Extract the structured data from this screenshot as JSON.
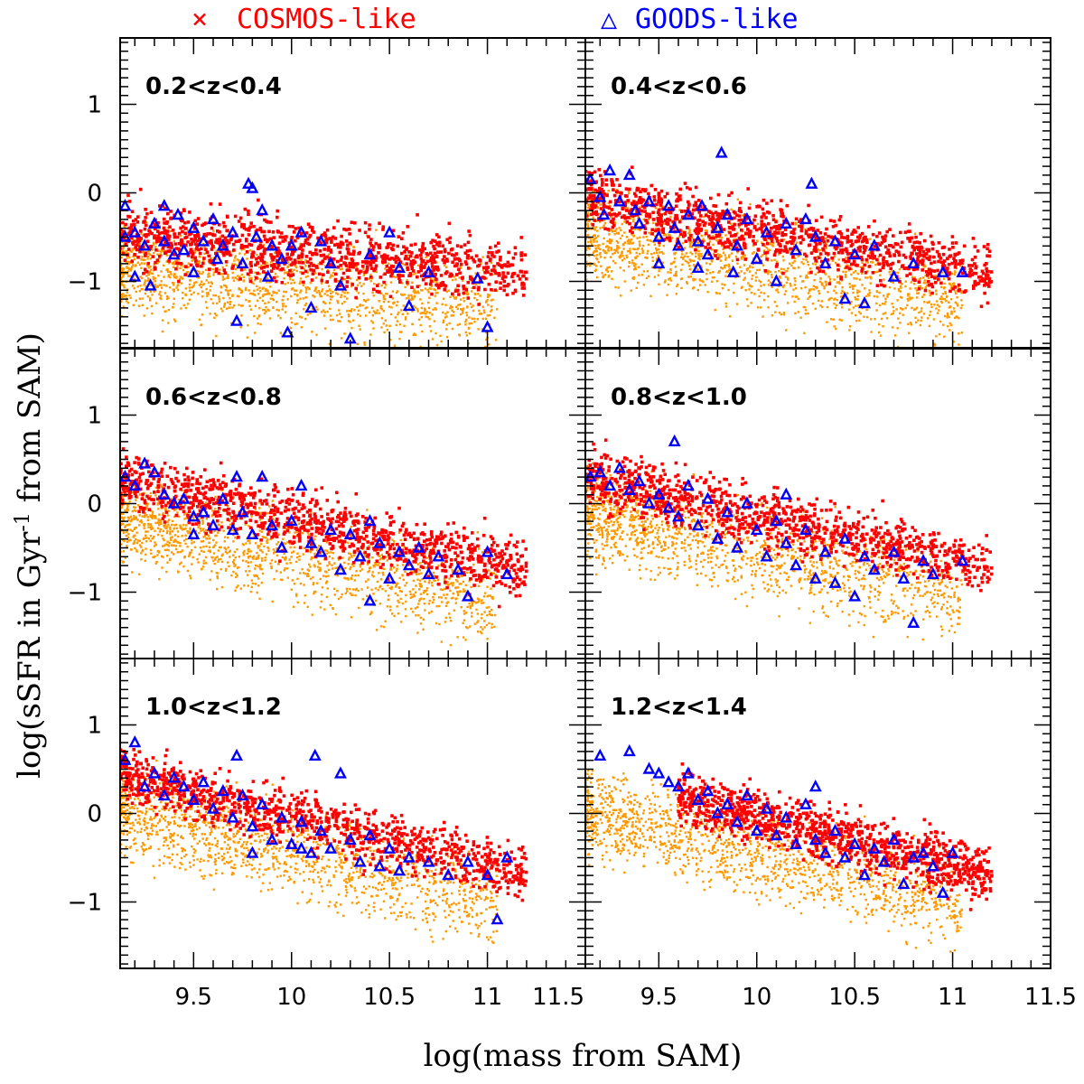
{
  "chart_data": {
    "type": "scatter",
    "layout": "3x2 grid of panels sharing axes",
    "xlabel": "log(mass from SAM)",
    "ylabel_parts": [
      "log(sSFR in Gyr",
      "-1",
      " from SAM)"
    ],
    "xlim": [
      9.125,
      11.5
    ],
    "ylim": [
      -1.75,
      1.75
    ],
    "x_ticks": [
      "9.5",
      "10",
      "10.5",
      "11",
      "11.5"
    ],
    "x_tick_values": [
      9.5,
      10,
      10.5,
      11,
      11.5
    ],
    "y_ticks": [
      "1",
      "0",
      "−1"
    ],
    "y_tick_values": [
      1,
      0,
      -1
    ],
    "legend": [
      {
        "symbol": "×",
        "label": "COSMOS-like",
        "color": "#ff0000"
      },
      {
        "symbol": "△",
        "label": "GOODS-like",
        "color": "#0000ff"
      }
    ],
    "colors": {
      "background_population": "#ff9900",
      "cosmos": "#ff0000",
      "goods": "#0000ff"
    },
    "series_description": {
      "background": "all SAM galaxies (orange crosses)",
      "cosmos": "COSMOS-like selected galaxies (red)",
      "goods": "GOODS-like selected galaxies (blue open triangles)"
    },
    "panels": [
      {
        "label": "0.2<z<0.4",
        "trend": {
          "intercept_at_9_125": -0.45,
          "slope": -0.22,
          "scatter": 0.35
        },
        "cosmos_x_range": [
          9.125,
          11.2
        ],
        "goods": [
          [
            9.15,
            -0.5
          ],
          [
            9.2,
            -0.45
          ],
          [
            9.25,
            -0.6
          ],
          [
            9.3,
            -0.35
          ],
          [
            9.35,
            -0.15
          ],
          [
            9.35,
            -0.55
          ],
          [
            9.4,
            -0.7
          ],
          [
            9.42,
            -0.25
          ],
          [
            9.45,
            -0.65
          ],
          [
            9.5,
            -0.4
          ],
          [
            9.5,
            -0.9
          ],
          [
            9.55,
            -0.55
          ],
          [
            9.6,
            -0.3
          ],
          [
            9.62,
            -0.75
          ],
          [
            9.65,
            -0.6
          ],
          [
            9.7,
            -0.45
          ],
          [
            9.72,
            -1.45
          ],
          [
            9.75,
            -0.8
          ],
          [
            9.78,
            0.1
          ],
          [
            9.8,
            0.05
          ],
          [
            9.82,
            -0.5
          ],
          [
            9.85,
            -0.2
          ],
          [
            9.88,
            -0.95
          ],
          [
            9.9,
            -0.6
          ],
          [
            9.95,
            -0.75
          ],
          [
            9.98,
            -1.58
          ],
          [
            10.0,
            -0.6
          ],
          [
            10.05,
            -0.45
          ],
          [
            10.1,
            -1.3
          ],
          [
            10.15,
            -0.55
          ],
          [
            10.2,
            -0.8
          ],
          [
            10.25,
            -1.05
          ],
          [
            10.3,
            -1.65
          ],
          [
            10.4,
            -0.7
          ],
          [
            10.5,
            -0.45
          ],
          [
            10.55,
            -0.85
          ],
          [
            10.6,
            -1.28
          ],
          [
            10.7,
            -0.9
          ],
          [
            10.95,
            -0.97
          ],
          [
            11.0,
            -1.52
          ],
          [
            9.2,
            -0.95
          ],
          [
            9.28,
            -1.05
          ],
          [
            9.15,
            -0.15
          ]
        ]
      },
      {
        "label": "0.4<z<0.6",
        "trend": {
          "intercept_at_9_125": -0.05,
          "slope": -0.42,
          "scatter": 0.33
        },
        "cosmos_x_range": [
          9.125,
          11.2
        ],
        "goods": [
          [
            9.15,
            0.15
          ],
          [
            9.2,
            -0.05
          ],
          [
            9.22,
            -0.25
          ],
          [
            9.25,
            0.25
          ],
          [
            9.3,
            -0.1
          ],
          [
            9.35,
            0.2
          ],
          [
            9.38,
            -0.2
          ],
          [
            9.4,
            -0.35
          ],
          [
            9.45,
            -0.1
          ],
          [
            9.5,
            -0.5
          ],
          [
            9.55,
            -0.15
          ],
          [
            9.58,
            -0.4
          ],
          [
            9.6,
            -0.6
          ],
          [
            9.65,
            -0.25
          ],
          [
            9.7,
            -0.55
          ],
          [
            9.72,
            -0.15
          ],
          [
            9.75,
            -0.7
          ],
          [
            9.8,
            -0.4
          ],
          [
            9.82,
            0.45
          ],
          [
            9.85,
            -0.25
          ],
          [
            9.88,
            -0.9
          ],
          [
            9.9,
            -0.6
          ],
          [
            9.95,
            -0.3
          ],
          [
            10.0,
            -0.75
          ],
          [
            10.05,
            -0.45
          ],
          [
            10.1,
            -1.0
          ],
          [
            10.15,
            -0.35
          ],
          [
            10.2,
            -0.65
          ],
          [
            10.25,
            -0.3
          ],
          [
            10.28,
            0.1
          ],
          [
            10.3,
            -0.5
          ],
          [
            10.35,
            -0.8
          ],
          [
            10.4,
            -0.55
          ],
          [
            10.45,
            -1.2
          ],
          [
            10.5,
            -0.7
          ],
          [
            10.55,
            -1.25
          ],
          [
            10.6,
            -0.6
          ],
          [
            10.7,
            -0.95
          ],
          [
            10.8,
            -0.8
          ],
          [
            10.95,
            -0.9
          ],
          [
            11.05,
            -0.9
          ],
          [
            9.5,
            -0.8
          ],
          [
            9.7,
            -0.85
          ]
        ]
      },
      {
        "label": "0.6<z<0.8",
        "trend": {
          "intercept_at_9_125": 0.25,
          "slope": -0.48,
          "scatter": 0.32
        },
        "cosmos_x_range": [
          9.125,
          11.2
        ],
        "goods": [
          [
            9.15,
            0.3
          ],
          [
            9.2,
            0.2
          ],
          [
            9.25,
            0.45
          ],
          [
            9.3,
            0.35
          ],
          [
            9.35,
            0.1
          ],
          [
            9.4,
            0.0
          ],
          [
            9.45,
            0.05
          ],
          [
            9.5,
            -0.15
          ],
          [
            9.55,
            -0.1
          ],
          [
            9.6,
            -0.25
          ],
          [
            9.65,
            0.05
          ],
          [
            9.7,
            -0.3
          ],
          [
            9.72,
            0.3
          ],
          [
            9.75,
            -0.1
          ],
          [
            9.8,
            -0.35
          ],
          [
            9.85,
            0.3
          ],
          [
            9.9,
            -0.25
          ],
          [
            9.95,
            -0.5
          ],
          [
            10.0,
            -0.2
          ],
          [
            10.05,
            0.2
          ],
          [
            10.1,
            -0.45
          ],
          [
            10.15,
            -0.55
          ],
          [
            10.2,
            -0.3
          ],
          [
            10.25,
            -0.75
          ],
          [
            10.3,
            -0.35
          ],
          [
            10.35,
            -0.6
          ],
          [
            10.4,
            -0.2
          ],
          [
            10.45,
            -0.45
          ],
          [
            10.5,
            -0.85
          ],
          [
            10.55,
            -0.55
          ],
          [
            10.6,
            -0.7
          ],
          [
            10.65,
            -0.5
          ],
          [
            10.7,
            -0.8
          ],
          [
            10.75,
            -0.6
          ],
          [
            10.85,
            -0.75
          ],
          [
            10.9,
            -1.05
          ],
          [
            11.0,
            -0.55
          ],
          [
            11.1,
            -0.8
          ],
          [
            10.4,
            -1.1
          ],
          [
            9.5,
            -0.35
          ]
        ]
      },
      {
        "label": "0.8<z<1.0",
        "trend": {
          "intercept_at_9_125": 0.3,
          "slope": -0.5,
          "scatter": 0.32
        },
        "cosmos_x_range": [
          9.125,
          11.2
        ],
        "goods": [
          [
            9.15,
            0.3
          ],
          [
            9.2,
            0.35
          ],
          [
            9.25,
            0.2
          ],
          [
            9.3,
            0.4
          ],
          [
            9.35,
            0.15
          ],
          [
            9.4,
            0.25
          ],
          [
            9.45,
            0.0
          ],
          [
            9.5,
            0.1
          ],
          [
            9.55,
            -0.05
          ],
          [
            9.58,
            0.7
          ],
          [
            9.6,
            -0.15
          ],
          [
            9.65,
            0.2
          ],
          [
            9.7,
            -0.25
          ],
          [
            9.75,
            0.05
          ],
          [
            9.8,
            -0.4
          ],
          [
            9.85,
            -0.1
          ],
          [
            9.9,
            -0.5
          ],
          [
            9.95,
            0.0
          ],
          [
            10.0,
            -0.3
          ],
          [
            10.05,
            -0.6
          ],
          [
            10.1,
            -0.2
          ],
          [
            10.15,
            -0.45
          ],
          [
            10.2,
            -0.7
          ],
          [
            10.25,
            -0.3
          ],
          [
            10.3,
            -0.85
          ],
          [
            10.35,
            -0.55
          ],
          [
            10.4,
            -0.9
          ],
          [
            10.45,
            -0.4
          ],
          [
            10.5,
            -1.05
          ],
          [
            10.55,
            -0.6
          ],
          [
            10.6,
            -0.75
          ],
          [
            10.7,
            -0.55
          ],
          [
            10.75,
            -0.85
          ],
          [
            10.8,
            -1.35
          ],
          [
            10.85,
            -0.65
          ],
          [
            10.9,
            -0.8
          ],
          [
            11.05,
            -0.65
          ],
          [
            10.15,
            0.1
          ]
        ]
      },
      {
        "label": "1.0<z<1.2",
        "trend": {
          "intercept_at_9_125": 0.45,
          "slope": -0.55,
          "scatter": 0.3
        },
        "cosmos_x_range": [
          9.125,
          11.2
        ],
        "goods": [
          [
            9.15,
            0.6
          ],
          [
            9.2,
            0.8
          ],
          [
            9.25,
            0.3
          ],
          [
            9.3,
            0.45
          ],
          [
            9.35,
            0.2
          ],
          [
            9.4,
            0.4
          ],
          [
            9.45,
            0.3
          ],
          [
            9.5,
            0.15
          ],
          [
            9.55,
            0.35
          ],
          [
            9.6,
            0.05
          ],
          [
            9.65,
            0.25
          ],
          [
            9.7,
            -0.05
          ],
          [
            9.72,
            0.65
          ],
          [
            9.75,
            0.2
          ],
          [
            9.8,
            -0.15
          ],
          [
            9.85,
            0.1
          ],
          [
            9.9,
            -0.3
          ],
          [
            9.95,
            -0.05
          ],
          [
            10.0,
            -0.35
          ],
          [
            10.05,
            -0.1
          ],
          [
            10.1,
            -0.45
          ],
          [
            10.12,
            0.65
          ],
          [
            10.15,
            -0.2
          ],
          [
            10.2,
            -0.4
          ],
          [
            10.25,
            0.45
          ],
          [
            10.3,
            -0.3
          ],
          [
            10.35,
            -0.55
          ],
          [
            10.4,
            -0.25
          ],
          [
            10.45,
            -0.6
          ],
          [
            10.5,
            -0.4
          ],
          [
            10.55,
            -0.65
          ],
          [
            10.6,
            -0.5
          ],
          [
            10.7,
            -0.55
          ],
          [
            10.8,
            -0.7
          ],
          [
            10.9,
            -0.55
          ],
          [
            11.0,
            -0.7
          ],
          [
            11.1,
            -0.5
          ],
          [
            11.05,
            -1.2
          ],
          [
            9.8,
            -0.45
          ],
          [
            10.05,
            -0.4
          ]
        ]
      },
      {
        "label": "1.2<z<1.4",
        "trend": {
          "intercept_at_9_125": 0.45,
          "slope": -0.55,
          "scatter": 0.3
        },
        "cosmos_x_range": [
          9.6,
          11.2
        ],
        "goods": [
          [
            9.2,
            0.65
          ],
          [
            9.35,
            0.7
          ],
          [
            9.45,
            0.5
          ],
          [
            9.5,
            0.45
          ],
          [
            9.55,
            0.35
          ],
          [
            9.6,
            0.3
          ],
          [
            9.65,
            0.45
          ],
          [
            9.7,
            0.15
          ],
          [
            9.75,
            0.25
          ],
          [
            9.8,
            0.0
          ],
          [
            9.85,
            0.1
          ],
          [
            9.9,
            -0.1
          ],
          [
            9.95,
            0.2
          ],
          [
            10.0,
            -0.2
          ],
          [
            10.05,
            0.05
          ],
          [
            10.1,
            -0.25
          ],
          [
            10.15,
            -0.05
          ],
          [
            10.2,
            -0.35
          ],
          [
            10.25,
            0.1
          ],
          [
            10.3,
            -0.3
          ],
          [
            10.35,
            -0.45
          ],
          [
            10.4,
            -0.2
          ],
          [
            10.45,
            -0.5
          ],
          [
            10.5,
            -0.35
          ],
          [
            10.55,
            -0.7
          ],
          [
            10.6,
            -0.4
          ],
          [
            10.65,
            -0.55
          ],
          [
            10.7,
            -0.3
          ],
          [
            10.75,
            -0.8
          ],
          [
            10.8,
            -0.5
          ],
          [
            10.85,
            -0.45
          ],
          [
            10.9,
            -0.6
          ],
          [
            10.95,
            -0.9
          ],
          [
            11.0,
            -0.45
          ],
          [
            10.3,
            0.3
          ]
        ]
      }
    ]
  }
}
